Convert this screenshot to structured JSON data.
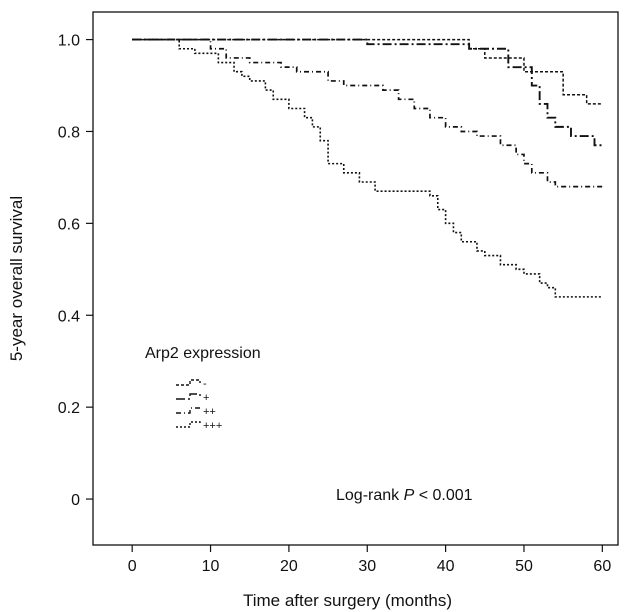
{
  "chart_data": {
    "type": "line",
    "subtype": "kaplan-meier step",
    "xlabel": "Time after surgery (months)",
    "ylabel": "5-year overall survival",
    "xlim": [
      -5,
      62
    ],
    "ylim": [
      -0.1,
      1.06
    ],
    "x_ticks": [
      0,
      10,
      20,
      30,
      40,
      50,
      60
    ],
    "y_ticks": [
      0,
      0.2,
      0.4,
      0.6,
      0.8,
      1.0
    ],
    "y_tick_labels": [
      "0",
      "0.2",
      "0.4",
      "0.6",
      "0.8",
      "1.0"
    ],
    "grid": false,
    "legend": {
      "title": "Arp2 expression",
      "placement": "lower-left",
      "entries": [
        "-",
        "+",
        "++",
        "+++"
      ]
    },
    "annotation": {
      "prefix": "Log-rank ",
      "p": "P",
      "suffix": " < 0.001"
    },
    "series": [
      {
        "name": "-",
        "color": "#111111",
        "x": [
          0,
          43,
          45,
          50,
          55,
          58,
          60
        ],
        "y": [
          1.0,
          0.98,
          0.96,
          0.93,
          0.88,
          0.86,
          0.86
        ]
      },
      {
        "name": "+",
        "color": "#111111",
        "x": [
          0,
          30,
          43,
          48,
          51,
          52,
          53,
          54,
          56,
          59,
          60
        ],
        "y": [
          1.0,
          0.99,
          0.98,
          0.94,
          0.9,
          0.86,
          0.83,
          0.81,
          0.79,
          0.77,
          0.77
        ]
      },
      {
        "name": "++",
        "color": "#111111",
        "x": [
          0,
          10,
          12,
          15,
          19,
          21,
          25,
          27,
          30,
          32,
          34,
          36,
          38,
          40,
          42,
          44,
          47,
          49,
          50,
          51,
          53,
          54,
          60
        ],
        "y": [
          1.0,
          0.98,
          0.96,
          0.95,
          0.94,
          0.93,
          0.91,
          0.9,
          0.9,
          0.89,
          0.87,
          0.85,
          0.83,
          0.81,
          0.8,
          0.79,
          0.77,
          0.75,
          0.73,
          0.71,
          0.69,
          0.68,
          0.68
        ]
      },
      {
        "name": "+++",
        "color": "#111111",
        "x": [
          0,
          6,
          8,
          11,
          13,
          14,
          15,
          17,
          18,
          20,
          22,
          23,
          24,
          25,
          27,
          29,
          31,
          38,
          39,
          40,
          41,
          42,
          44,
          45,
          47,
          49,
          50,
          52,
          53,
          54,
          60
        ],
        "y": [
          1.0,
          0.98,
          0.97,
          0.95,
          0.93,
          0.92,
          0.91,
          0.89,
          0.87,
          0.85,
          0.83,
          0.81,
          0.78,
          0.73,
          0.71,
          0.69,
          0.67,
          0.66,
          0.63,
          0.6,
          0.58,
          0.56,
          0.54,
          0.53,
          0.51,
          0.5,
          0.49,
          0.47,
          0.46,
          0.44,
          0.44
        ]
      }
    ]
  }
}
